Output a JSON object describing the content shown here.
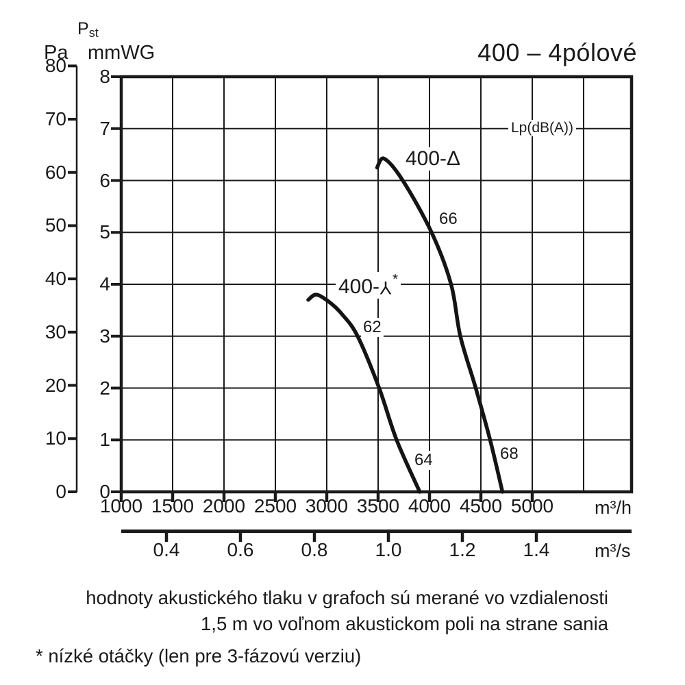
{
  "title": "400 – 4pólové",
  "axes": {
    "pa": {
      "unit": "Pa",
      "ticks": [
        "80",
        "70",
        "60",
        "50",
        "40",
        "30",
        "20",
        "10",
        "0"
      ]
    },
    "mmwg": {
      "quantity_main": "P",
      "quantity_sub": "st",
      "unit": "mmWG",
      "ticks": [
        "8",
        "7",
        "6",
        "5",
        "4",
        "3",
        "2",
        "1",
        "0"
      ]
    },
    "m3h": {
      "ticks": [
        "1000",
        "1500",
        "2000",
        "2500",
        "3000",
        "3500",
        "4000",
        "4500",
        "5000"
      ],
      "unit": "m³/h"
    },
    "m3s": {
      "ticks": [
        "0.4",
        "0.6",
        "0.8",
        "1.0",
        "1.2",
        "1.4"
      ],
      "unit": "m³/s"
    }
  },
  "plot_labels": {
    "lp": "Lp(dB(A))",
    "delta_curve": "400-Δ",
    "star_prefix": "400-",
    "star_symbol": "Y",
    "star_footnote_marker": "*",
    "db_delta_upper": "66",
    "db_delta_lower": "68",
    "db_star_upper": "62",
    "db_star_lower": "64"
  },
  "notes": {
    "line1": "hodnoty akustického tlaku v grafoch sú merané vo vzdialenosti",
    "line2": "1,5 m vo voľnom akustickom poli na strane sania",
    "footnote": "* nízké otáčky (len pre 3-fázovú verziu)"
  },
  "colors": {
    "ink": "#1a1a1a",
    "background": "#ffffff"
  },
  "chart_data": {
    "type": "line",
    "title": "400 – 4pólové",
    "xlabel_primary": "m³/h",
    "xlabel_secondary": "m³/s",
    "ylabel_inner": "Pst mmWG",
    "ylabel_outer": "Pa",
    "x_ticks_m3h": [
      1000,
      1500,
      2000,
      2500,
      3000,
      3500,
      4000,
      4500,
      5000
    ],
    "x_ticks_m3s": [
      0.4,
      0.6,
      0.8,
      1.0,
      1.2,
      1.4
    ],
    "y_ticks_mmwg": [
      0,
      1,
      2,
      3,
      4,
      5,
      6,
      7,
      8
    ],
    "y_ticks_pa": [
      0,
      10,
      20,
      30,
      40,
      50,
      60,
      70,
      80
    ],
    "x_range_m3h": [
      1000,
      5970
    ],
    "y_range_mmwg": [
      0,
      8
    ],
    "y_range_pa": [
      0,
      80
    ],
    "grid": true,
    "annotation": "Lp(dB(A))",
    "series": [
      {
        "name": "400-Δ",
        "sound_pressure_labels_dBA": [
          66,
          68
        ],
        "points_m3h_mmwg": [
          [
            3490,
            6.25
          ],
          [
            3560,
            6.42
          ],
          [
            3740,
            6.0
          ],
          [
            4020,
            5.0
          ],
          [
            4210,
            4.0
          ],
          [
            4300,
            3.0
          ],
          [
            4450,
            2.0
          ],
          [
            4590,
            1.0
          ],
          [
            4710,
            0.0
          ]
        ]
      },
      {
        "name": "400-Y* (nízké otáčky)",
        "sound_pressure_labels_dBA": [
          62,
          64
        ],
        "points_m3h_mmwg": [
          [
            2820,
            3.7
          ],
          [
            2900,
            3.8
          ],
          [
            3030,
            3.65
          ],
          [
            3150,
            3.42
          ],
          [
            3300,
            3.0
          ],
          [
            3510,
            2.0
          ],
          [
            3680,
            1.0
          ],
          [
            3905,
            0.0
          ]
        ]
      }
    ]
  }
}
